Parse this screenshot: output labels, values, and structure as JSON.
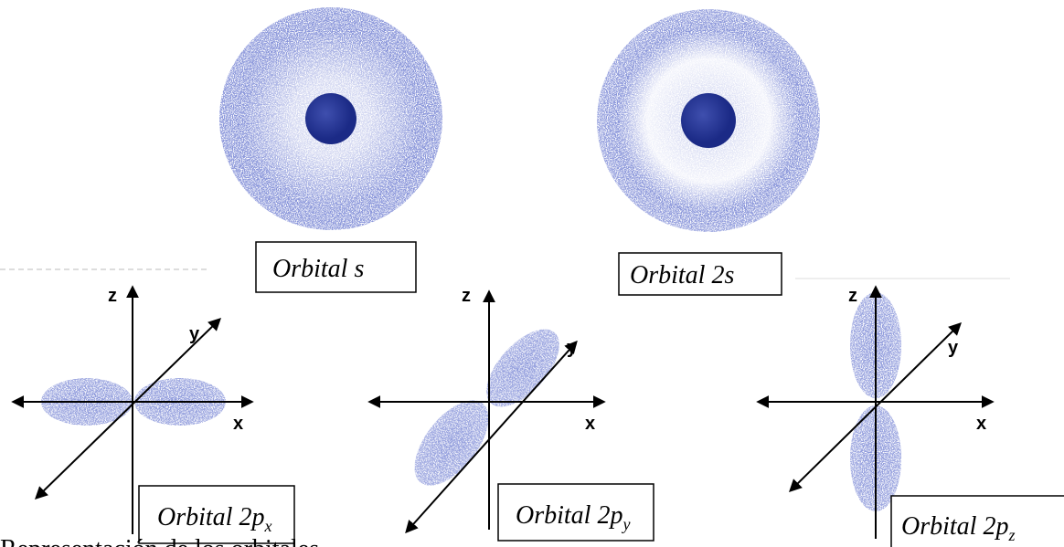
{
  "s_orbitals": [
    {
      "label": "Orbital s"
    },
    {
      "label": "Orbital 2s"
    }
  ],
  "p_orbitals": [
    {
      "label": "Orbital 2p",
      "subscript": "x",
      "axes": {
        "z": "z",
        "y": "y",
        "x": "x"
      }
    },
    {
      "label": "Orbital 2p",
      "subscript": "y",
      "axes": {
        "z": "z",
        "y": "y",
        "x": "x"
      }
    },
    {
      "label": "Orbital 2p",
      "subscript": "z",
      "axes": {
        "z": "z",
        "y": "y",
        "x": "x"
      }
    }
  ],
  "caption": "Representación de los orbitales"
}
